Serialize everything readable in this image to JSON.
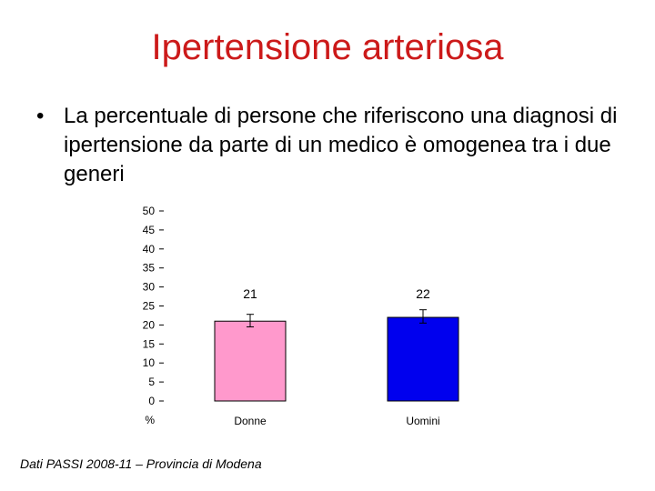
{
  "slide": {
    "title": "Ipertensione arteriosa",
    "bullet_symbol": "•",
    "bullet_text": "La percentuale di persone che riferiscono una diagnosi di ipertensione da parte di un medico è omogenea tra i due generi",
    "source": "Dati PASSI 2008-11 – Provincia di Modena"
  },
  "chart_data": {
    "type": "bar",
    "categories": [
      "Donne",
      "Uomini"
    ],
    "values": [
      21,
      22
    ],
    "error_bars": [
      [
        19.5,
        22.8
      ],
      [
        20.5,
        24.0
      ]
    ],
    "data_labels": [
      "21",
      "22"
    ],
    "colors": [
      "#ff99cc",
      "#0000ee"
    ],
    "ylim": [
      0,
      50
    ],
    "yticks": [
      "0",
      "5",
      "10",
      "15",
      "20",
      "25",
      "30",
      "35",
      "40",
      "45",
      "50"
    ],
    "ylabel": "%",
    "grid": false
  }
}
